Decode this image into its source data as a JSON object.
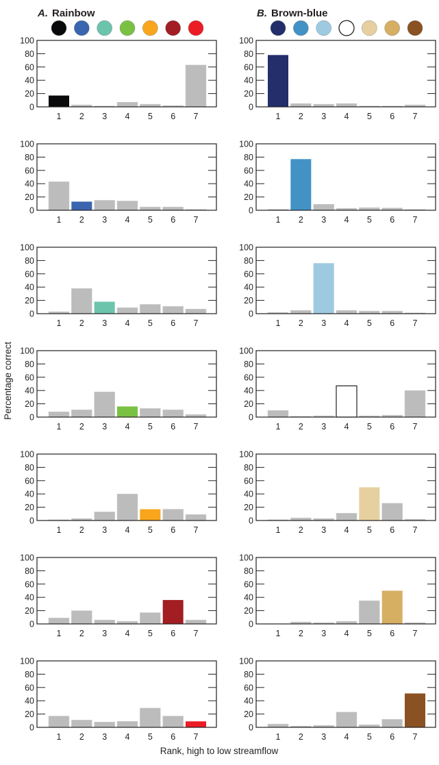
{
  "chart_data": [
    {
      "type": "bar",
      "panel_label": "A.",
      "title": "Rainbow",
      "palette": [
        "#0a0a0c",
        "#3a66b0",
        "#6cc4ac",
        "#7ac143",
        "#f9a61c",
        "#a21e23",
        "#ec1c24"
      ],
      "categories": [
        "1",
        "2",
        "3",
        "4",
        "5",
        "6",
        "7"
      ],
      "ylim": [
        0,
        100
      ],
      "yticks": [
        "0",
        "20",
        "40",
        "60",
        "80",
        "100"
      ],
      "highlight_rule": "bar at rank i of row i drawn in palette color i; others gray",
      "other_color": "#bcbcbc",
      "rows": [
        [
          17,
          3,
          1,
          7,
          4,
          2,
          63
        ],
        [
          43,
          13,
          15,
          14,
          5,
          5,
          1
        ],
        [
          3,
          38,
          18,
          9,
          14,
          11,
          7
        ],
        [
          8,
          11,
          38,
          16,
          13,
          11,
          4
        ],
        [
          1,
          3,
          13,
          40,
          17,
          17,
          9
        ],
        [
          9,
          20,
          6,
          4,
          17,
          36,
          6
        ],
        [
          17,
          11,
          8,
          9,
          29,
          17,
          9
        ]
      ]
    },
    {
      "type": "bar",
      "panel_label": "B.",
      "title": "Brown-blue",
      "palette": [
        "#232e6b",
        "#4292c6",
        "#9ecae1",
        "#ffffff",
        "#e6d0a0",
        "#d6af63",
        "#8a5122"
      ],
      "categories": [
        "1",
        "2",
        "3",
        "4",
        "5",
        "6",
        "7"
      ],
      "ylim": [
        0,
        100
      ],
      "yticks": [
        "0",
        "20",
        "40",
        "60",
        "80",
        "100"
      ],
      "highlight_rule": "bar at rank i of row i drawn in palette color i; others gray",
      "other_color": "#bcbcbc",
      "rows": [
        [
          78,
          5,
          4,
          5,
          0.5,
          1,
          3
        ],
        [
          1.5,
          77,
          9,
          3,
          4,
          3.5,
          0.5
        ],
        [
          2,
          5,
          76,
          5,
          4,
          4,
          1
        ],
        [
          10,
          1,
          2,
          47,
          2,
          3,
          40
        ],
        [
          1,
          4,
          3,
          11,
          50,
          26,
          2
        ],
        [
          0,
          3,
          2,
          4,
          35,
          50,
          2
        ],
        [
          5,
          2,
          3,
          23,
          4,
          12,
          51
        ]
      ]
    }
  ],
  "ylabel": "Percentage correct",
  "xlabel": "Rank, high to low streamflow"
}
